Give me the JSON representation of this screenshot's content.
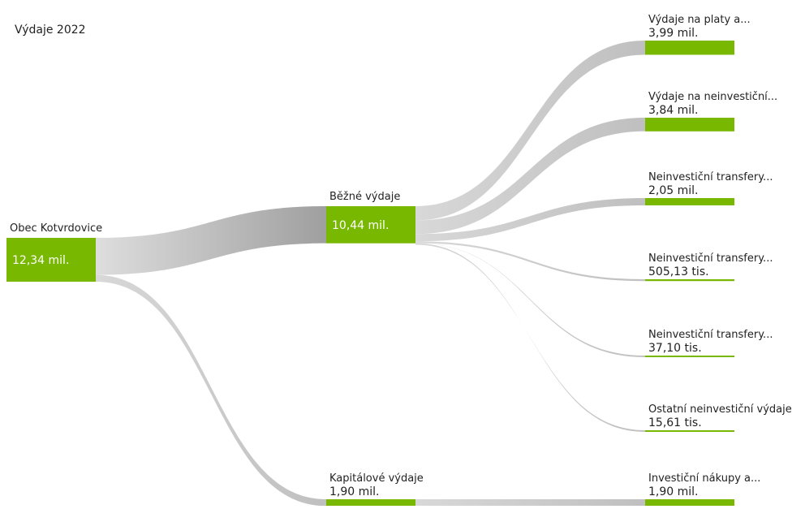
{
  "chart_data": {
    "type": "sankey",
    "title": "Výdaje 2022",
    "color": "#78b800",
    "nodes": [
      "Obec Kotvrdovice",
      "Běžné výdaje",
      "Kapitálové výdaje",
      "Výdaje na platy a...",
      "Výdaje na neinvestiční...",
      "Neinvestiční transfery...",
      "Neinvestiční transfery...",
      "Neinvestiční transfery...",
      "Ostatní neinvestiční výdaje",
      "Investiční nákupy a..."
    ],
    "parents": [
      null,
      0,
      0,
      1,
      1,
      1,
      1,
      1,
      1,
      2
    ],
    "values": [
      12340000,
      10440000,
      1900000,
      3990000,
      3840000,
      2050000,
      505130,
      37100,
      15610,
      1900000
    ],
    "value_labels": [
      "12,34 mil.",
      "10,44 mil.",
      "1,90 mil.",
      "3,99 mil.",
      "3,84 mil.",
      "2,05 mil.",
      "505,13 tis.",
      "37,10 tis.",
      "15,61 tis.",
      "1,90 mil."
    ]
  }
}
